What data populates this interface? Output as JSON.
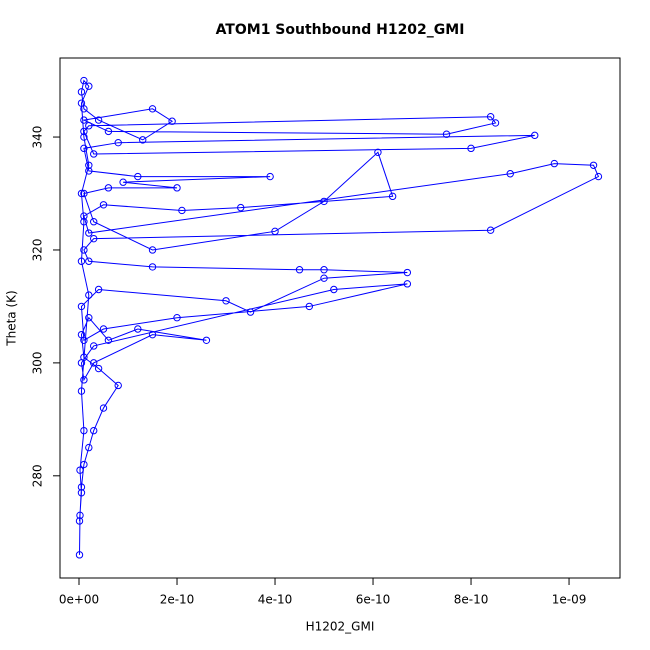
{
  "chart_data": {
    "type": "line",
    "title": "ATOM1 Southbound H1202_GMI",
    "x_label": "H1202_GMI",
    "y_label": "Theta (K)",
    "color": "#0000ff",
    "xlim": [
      -3.88e-11,
      1.104e-09
    ],
    "ylim": [
      261.9,
      354.0
    ],
    "xticks": [
      {
        "value": 0,
        "label": "0e+00"
      },
      {
        "value": 2e-10,
        "label": "2e-10"
      },
      {
        "value": 4e-10,
        "label": "4e-10"
      },
      {
        "value": 6e-10,
        "label": "6e-10"
      },
      {
        "value": 8e-10,
        "label": "8e-10"
      },
      {
        "value": 1e-09,
        "label": "1e-09"
      }
    ],
    "yticks": [
      280,
      300,
      320,
      340
    ],
    "x": [
      1e-12,
      2e-12,
      5e-12,
      1e-11,
      2e-11,
      3e-11,
      5e-11,
      8e-11,
      4e-11,
      1e-11,
      5e-12,
      2e-11,
      6e-11,
      1.2e-10,
      2.6e-10,
      1.5e-10,
      3e-11,
      1e-11,
      5e-12,
      3e-11,
      5.2e-10,
      6.7e-10,
      4.7e-10,
      2e-10,
      5e-11,
      1e-11,
      5e-12,
      4e-11,
      3e-10,
      3.5e-10,
      5e-10,
      6.7e-10,
      5e-10,
      4.5e-10,
      1.5e-10,
      2e-11,
      1e-11,
      3e-11,
      8.4e-10,
      1.06e-09,
      1.05e-09,
      9.7e-10,
      8.8e-10,
      2e-11,
      1e-11,
      5e-11,
      2.1e-10,
      3.3e-10,
      6.4e-10,
      6.1e-10,
      5e-10,
      4e-10,
      1.5e-10,
      3e-11,
      1e-11,
      6e-11,
      2e-10,
      9e-11,
      3.9e-10,
      1.2e-10,
      2e-11,
      1e-11,
      8e-11,
      9.3e-10,
      8e-10,
      3e-11,
      1e-11,
      2e-11,
      8.4e-10,
      8.5e-10,
      7.5e-10,
      6e-11,
      1e-11,
      1.5e-10,
      1.9e-10,
      1.3e-10,
      4e-11,
      1e-11,
      5e-12,
      1e-11,
      2e-11,
      5e-12,
      1e-11,
      2e-11,
      5e-12,
      1e-11,
      5e-12,
      2e-11,
      5e-12,
      1e-11,
      2e-12,
      5e-12,
      1e-12
    ],
    "values": [
      266,
      273,
      278,
      282,
      285,
      288,
      292,
      296,
      299,
      301,
      305,
      308,
      304,
      306,
      304,
      305,
      300,
      297,
      300,
      303,
      313,
      314,
      310,
      308,
      306,
      304,
      310,
      313,
      311,
      309,
      315,
      316,
      316.5,
      316.5,
      317,
      318,
      320,
      322,
      323.5,
      333,
      335,
      335.3,
      333.5,
      323,
      326,
      328,
      327,
      327.5,
      329.5,
      337.3,
      328.6,
      323.3,
      320,
      325,
      330,
      331,
      331,
      332,
      333,
      333,
      334,
      338,
      339,
      340.3,
      338,
      337,
      341,
      342,
      343.6,
      342.5,
      340.5,
      341,
      343,
      345,
      342.8,
      339.5,
      343,
      345,
      348,
      350,
      349,
      346,
      340,
      335,
      330,
      325,
      318,
      312,
      295,
      288,
      281,
      277,
      272
    ]
  }
}
